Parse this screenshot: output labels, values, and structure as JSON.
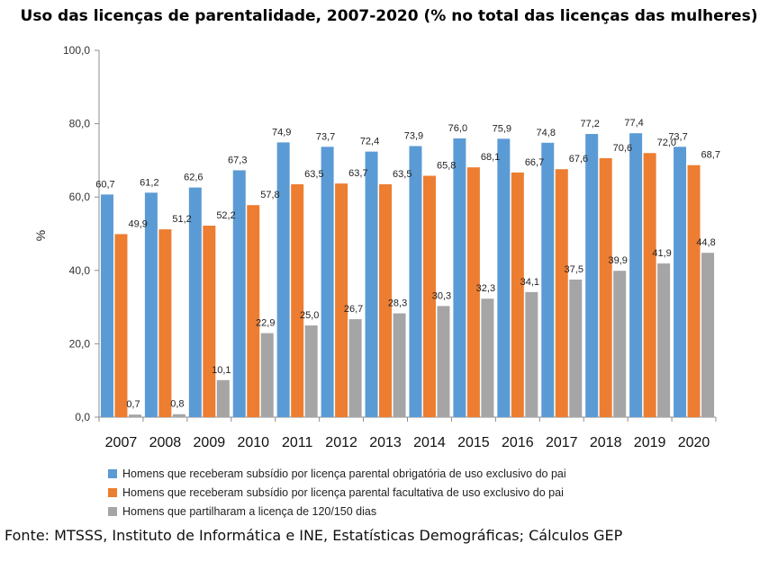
{
  "chart_data": {
    "type": "bar",
    "title": "Uso das licenças de parentalidade, 2007-2020 (% no total das licenças das mulheres)",
    "xlabel": "",
    "ylabel": "%",
    "ylim": [
      0,
      100
    ],
    "yticks": [
      "0,0",
      "20,0",
      "40,0",
      "60,0",
      "80,0",
      "100,0"
    ],
    "categories": [
      "2007",
      "2008",
      "2009",
      "2010",
      "2011",
      "2012",
      "2013",
      "2014",
      "2015",
      "2016",
      "2017",
      "2018",
      "2019",
      "2020"
    ],
    "series": [
      {
        "name": "Homens que receberam subsídio por licença parental obrigatória de uso exclusivo do pai",
        "color": "#5b9bd5",
        "values": [
          60.7,
          61.2,
          62.6,
          67.3,
          74.9,
          73.7,
          72.4,
          73.9,
          76.0,
          75.9,
          74.8,
          77.2,
          77.4,
          73.7
        ],
        "labels": [
          "60,7",
          "61,2",
          "62,6",
          "67,3",
          "74,9",
          "73,7",
          "72,4",
          "73,9",
          "76,0",
          "75,9",
          "74,8",
          "77,2",
          "77,4",
          "73,7"
        ]
      },
      {
        "name": "Homens que receberam subsídio por licença parental facultativa de uso exclusivo do pai",
        "color": "#ed7d31",
        "values": [
          49.9,
          51.2,
          52.2,
          57.8,
          63.5,
          63.7,
          63.5,
          65.8,
          68.1,
          66.7,
          67.6,
          70.6,
          72.0,
          68.7
        ],
        "labels": [
          "49,9",
          "51,2",
          "52,2",
          "57,8",
          "63,5",
          "63,7",
          "63,5",
          "65,8",
          "68,1",
          "66,7",
          "67,6",
          "70,6",
          "72,0",
          "68,7"
        ]
      },
      {
        "name": "Homens que partilharam a licença de 120/150 dias",
        "color": "#a5a5a5",
        "values": [
          0.7,
          0.8,
          10.1,
          22.9,
          25.0,
          26.7,
          28.3,
          30.3,
          32.3,
          34.1,
          37.5,
          39.9,
          41.9,
          44.8
        ],
        "labels": [
          "0,7",
          "0,8",
          "10,1",
          "22,9",
          "25,0",
          "26,7",
          "28,3",
          "30,3",
          "32,3",
          "34,1",
          "37,5",
          "39,9",
          "41,9",
          "44,8"
        ]
      }
    ],
    "legend_position": "bottom",
    "grid": false
  },
  "source": "Fonte: MTSSS, Instituto de Informática e INE, Estatísticas Demográficas; Cálculos GEP"
}
